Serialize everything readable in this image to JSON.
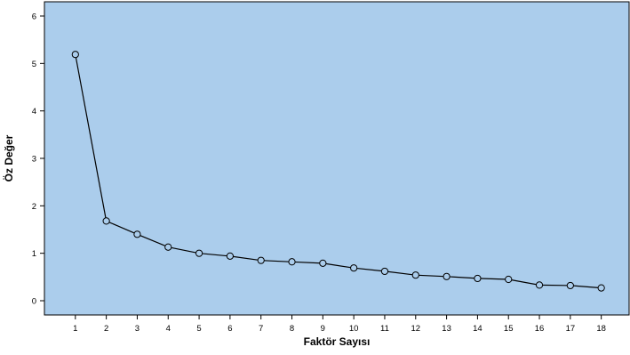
{
  "chart_data": {
    "type": "line",
    "title": "",
    "xlabel": "Faktör Sayısı",
    "ylabel": "Öz Değer",
    "x": [
      1,
      2,
      3,
      4,
      5,
      6,
      7,
      8,
      9,
      10,
      11,
      12,
      13,
      14,
      15,
      16,
      17,
      18
    ],
    "x_tick_labels": [
      "1",
      "2",
      "3",
      "4",
      "5",
      "6",
      "7",
      "8",
      "9",
      "10",
      "11",
      "12",
      "13",
      "14",
      "15",
      "16",
      "17",
      "18"
    ],
    "y_tick_labels": [
      "0",
      "1",
      "2",
      "3",
      "4",
      "5",
      "6"
    ],
    "series": [
      {
        "values": [
          5.19,
          1.68,
          1.4,
          1.13,
          1.0,
          0.94,
          0.85,
          0.82,
          0.79,
          0.69,
          0.62,
          0.54,
          0.51,
          0.47,
          0.45,
          0.33,
          0.32,
          0.27
        ],
        "marker": "open-circle",
        "color": "#000000"
      }
    ],
    "xlim": [
      0,
      18.9
    ],
    "ylim": [
      -0.3,
      6.3
    ],
    "grid": false,
    "legend": "none",
    "plot_background": "#abcdec",
    "frame_color": "#000000"
  }
}
